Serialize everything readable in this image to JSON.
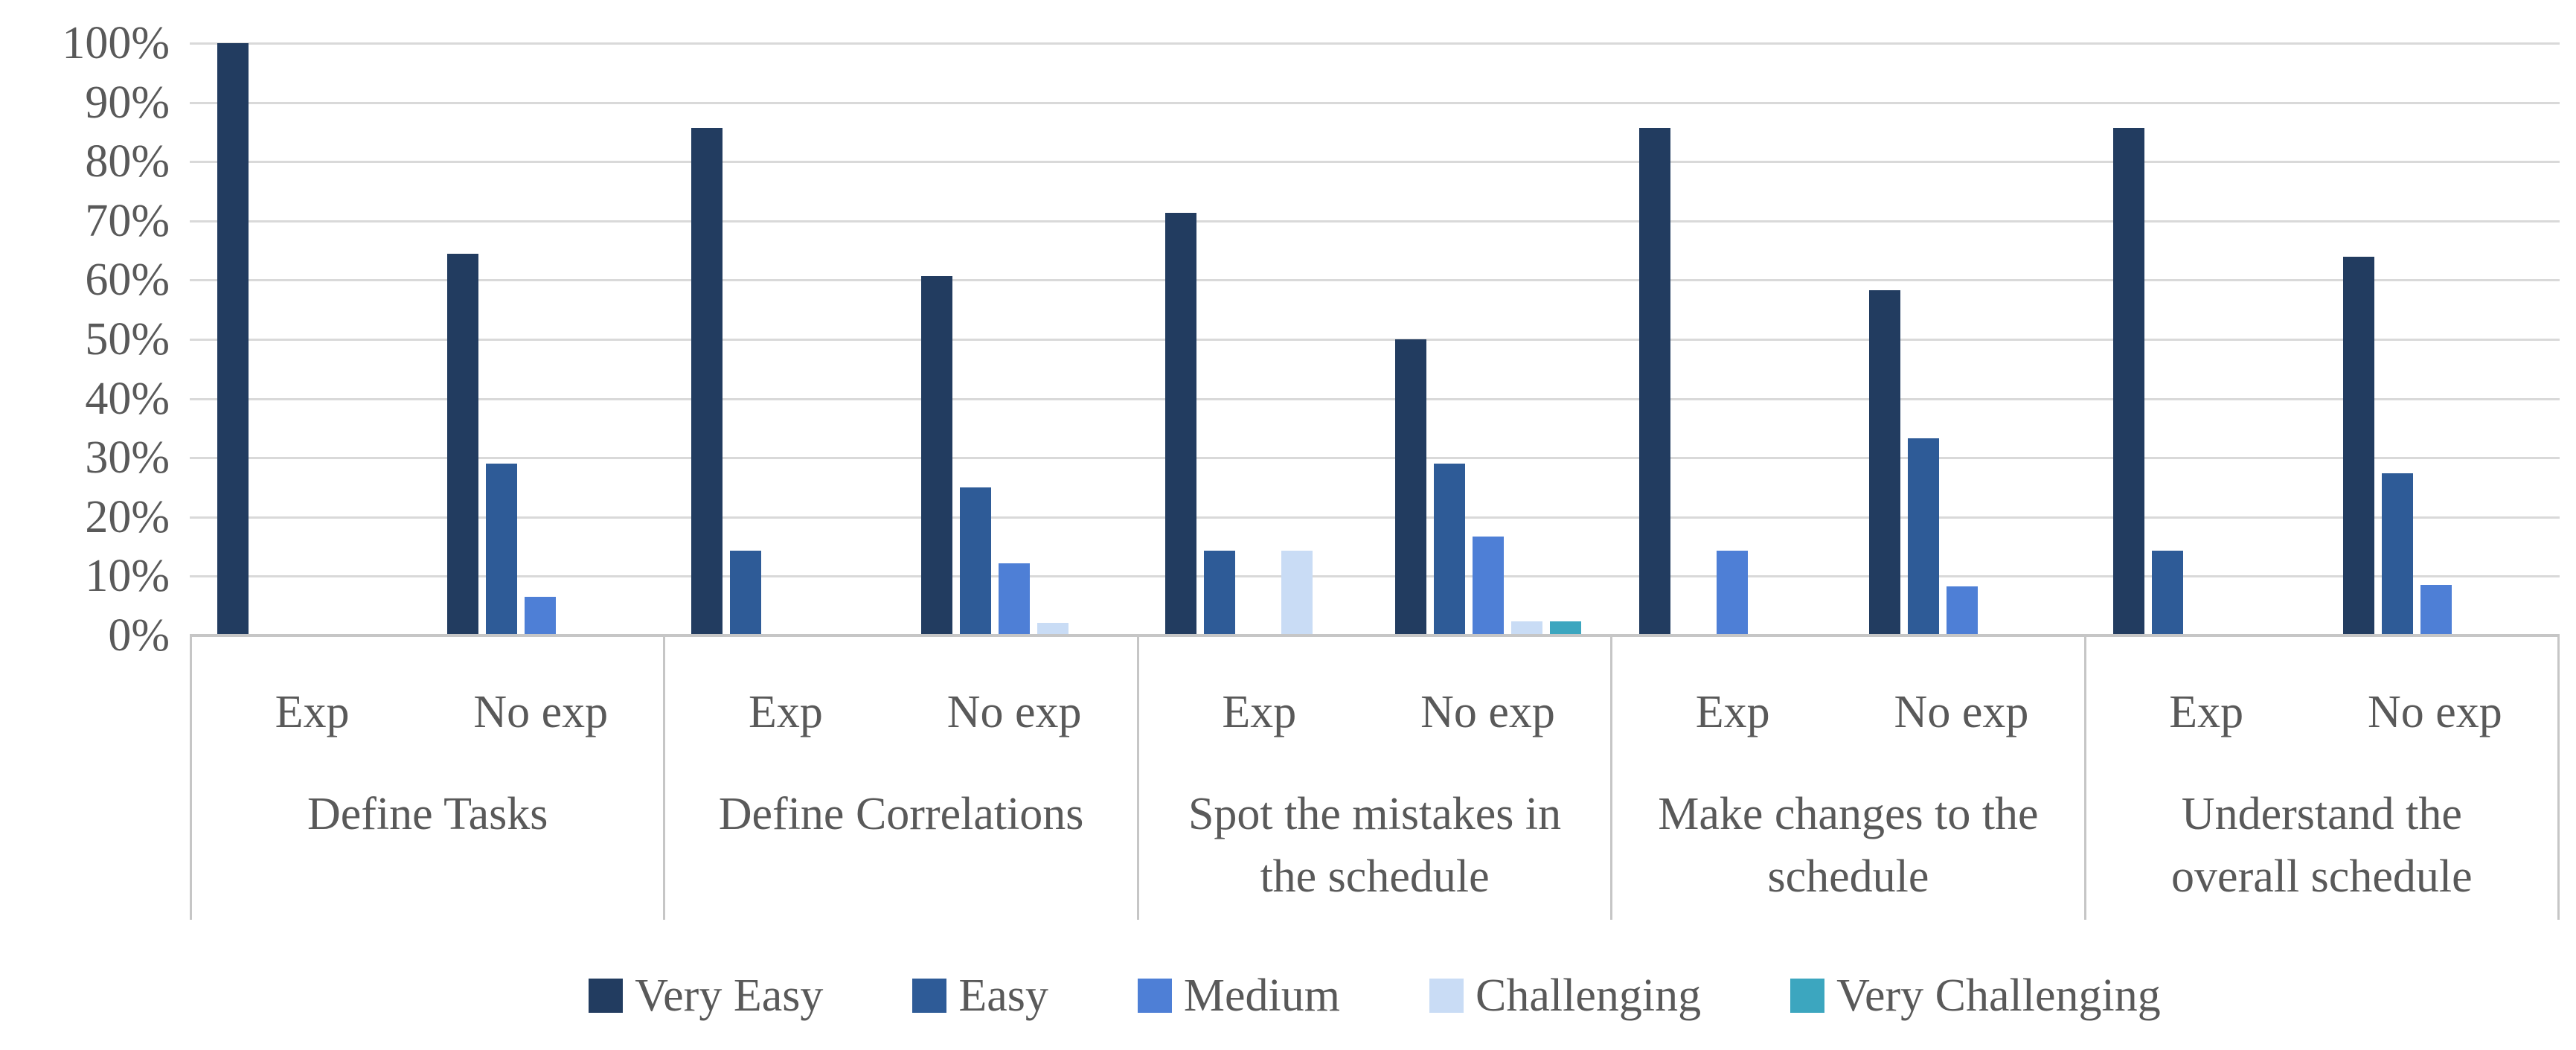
{
  "colors": {
    "background": "#FFFFFF",
    "text": "#595959",
    "gridline": "#D9D9D9",
    "axis_line": "#C6C6C6",
    "separator": "#C6C6C6"
  },
  "chart_data": {
    "type": "bar",
    "title": "",
    "xlabel": "",
    "ylabel": "",
    "ylim": [
      0,
      100
    ],
    "grid": true,
    "legend_position": "bottom",
    "y_ticks": [
      "100%",
      "90%",
      "80%",
      "70%",
      "60%",
      "50%",
      "40%",
      "30%",
      "20%",
      "10%",
      "0%"
    ],
    "series": [
      {
        "name": "Very Easy",
        "color": "#223C60"
      },
      {
        "name": "Easy",
        "color": "#2E5B97"
      },
      {
        "name": "Medium",
        "color": "#4E7FD6"
      },
      {
        "name": "Challenging",
        "color": "#C9DCF5"
      },
      {
        "name": "Very Challenging",
        "color": "#3CA6BF"
      }
    ],
    "groups": [
      {
        "category": "Define Tasks",
        "clusters": [
          {
            "label": "Exp",
            "values": [
              100,
              0,
              0,
              0,
              0
            ]
          },
          {
            "label": "No exp",
            "values": [
              64.5,
              29,
              6.5,
              0,
              0
            ]
          }
        ]
      },
      {
        "category": "Define Correlations",
        "clusters": [
          {
            "label": "Exp",
            "values": [
              85.7,
              14.3,
              0,
              0,
              0
            ]
          },
          {
            "label": "No exp",
            "values": [
              60.7,
              25,
              12.2,
              2.1,
              0
            ]
          }
        ]
      },
      {
        "category": "Spot the mistakes in the schedule",
        "clusters": [
          {
            "label": "Exp",
            "values": [
              71.4,
              14.3,
              0,
              14.3,
              0
            ]
          },
          {
            "label": "No exp",
            "values": [
              50,
              29,
              16.7,
              2.4,
              2.4
            ]
          }
        ]
      },
      {
        "category": "Make changes to the schedule",
        "clusters": [
          {
            "label": "Exp",
            "values": [
              85.7,
              0,
              14.3,
              0,
              0
            ]
          },
          {
            "label": "No exp",
            "values": [
              58.3,
              33.3,
              8.3,
              0,
              0
            ]
          }
        ]
      },
      {
        "category": "Understand the overall schedule",
        "clusters": [
          {
            "label": "Exp",
            "values": [
              85.7,
              14.3,
              0,
              0,
              0
            ]
          },
          {
            "label": "No exp",
            "values": [
              63.9,
              27.4,
              8.5,
              0,
              0
            ]
          }
        ]
      }
    ],
    "cluster_centers_pct": [
      25.5,
      74
    ]
  }
}
